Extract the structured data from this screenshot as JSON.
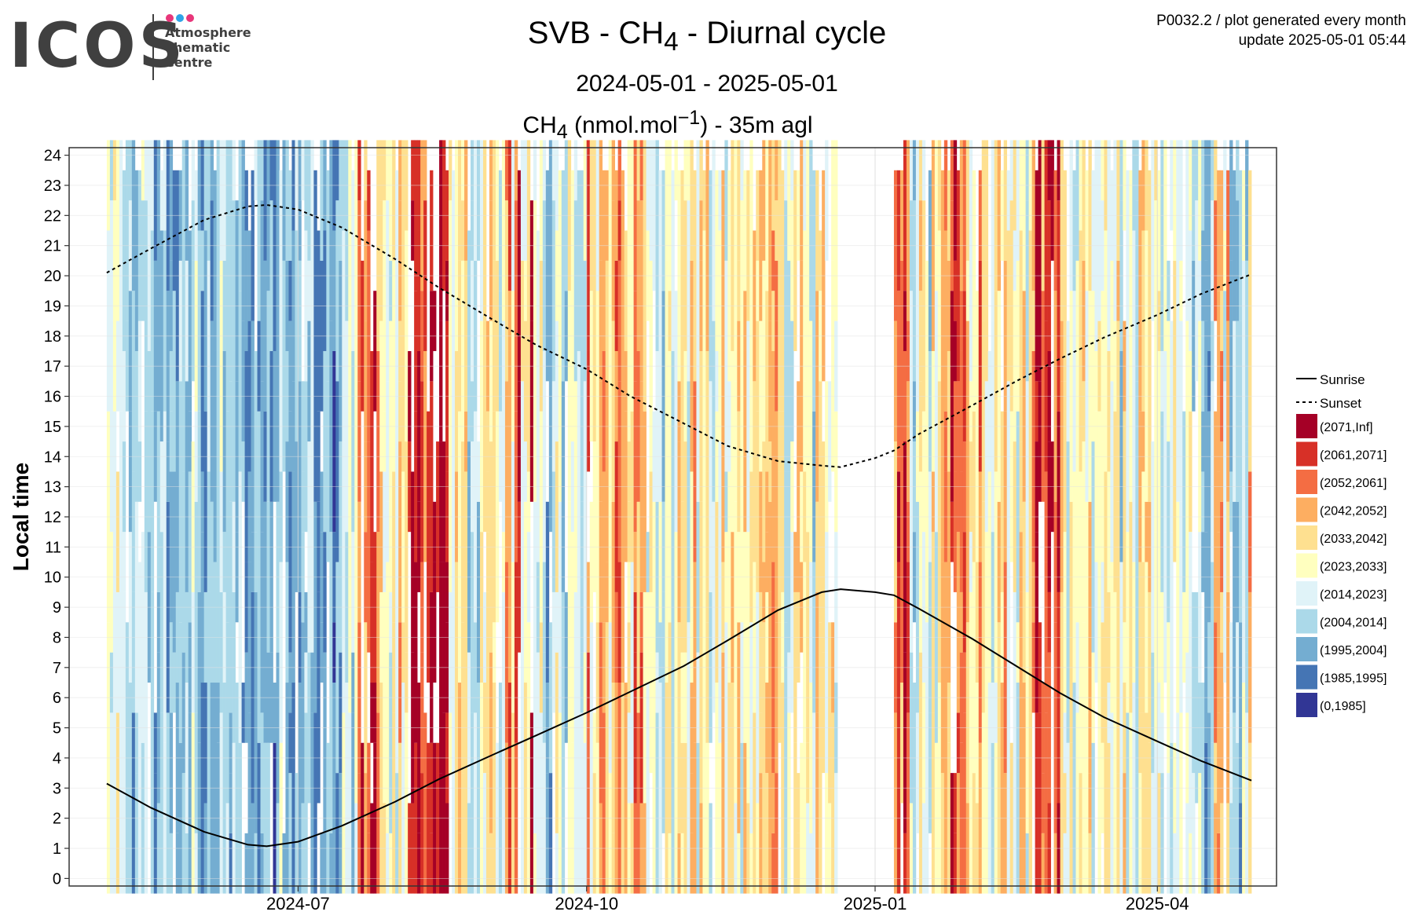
{
  "logo": {
    "word": "ICOS",
    "line1": "Atmosphere",
    "line2": "Thematic",
    "line3": "Centre",
    "dot_colors": [
      "#e8367a",
      "#2fa4e7",
      "#e8367a"
    ]
  },
  "header": {
    "title_prefix": "SVB - CH",
    "title_sub": "4",
    "title_suffix": " - Diurnal cycle",
    "period": "2024-05-01 - 2025-05-01",
    "subtitle_prefix": "CH",
    "subtitle_sub": "4",
    "subtitle_mid": " (nmol.mol",
    "subtitle_sup": "−1",
    "subtitle_suffix": ") - 35m agl",
    "corner_line1": "P0032.2 / plot generated every month",
    "corner_line2": "update  2025-05-01 05:44"
  },
  "chart_data": {
    "type": "heatmap",
    "ylabel": "Local time",
    "xlabel": "",
    "x_range": [
      "2024-05-01",
      "2025-05-01"
    ],
    "ylim": [
      0,
      24
    ],
    "y_ticks": [
      0,
      1,
      2,
      3,
      4,
      5,
      6,
      7,
      8,
      9,
      10,
      11,
      12,
      13,
      14,
      15,
      16,
      17,
      18,
      19,
      20,
      21,
      22,
      23,
      24
    ],
    "x_ticks": [
      {
        "date": "2024-07-01",
        "label": "2024-07"
      },
      {
        "date": "2024-10-01",
        "label": "2024-10"
      },
      {
        "date": "2025-01-01",
        "label": "2025-01"
      },
      {
        "date": "2025-04-01",
        "label": "2025-04"
      }
    ],
    "grid": true,
    "legend_position": "right",
    "lines": [
      {
        "name": "Sunrise",
        "style": "solid",
        "points": [
          [
            "2024-05-01",
            3.15
          ],
          [
            "2024-05-15",
            2.35
          ],
          [
            "2024-06-01",
            1.55
          ],
          [
            "2024-06-15",
            1.12
          ],
          [
            "2024-06-21",
            1.07
          ],
          [
            "2024-07-01",
            1.22
          ],
          [
            "2024-07-15",
            1.75
          ],
          [
            "2024-08-01",
            2.55
          ],
          [
            "2024-08-15",
            3.3
          ],
          [
            "2024-09-01",
            4.1
          ],
          [
            "2024-09-15",
            4.75
          ],
          [
            "2024-10-01",
            5.5
          ],
          [
            "2024-10-15",
            6.2
          ],
          [
            "2024-11-01",
            7.05
          ],
          [
            "2024-11-15",
            7.9
          ],
          [
            "2024-12-01",
            8.9
          ],
          [
            "2024-12-15",
            9.5
          ],
          [
            "2024-12-21",
            9.6
          ],
          [
            "2025-01-01",
            9.5
          ],
          [
            "2025-01-07",
            9.4
          ],
          [
            "2025-01-15",
            8.95
          ],
          [
            "2025-02-01",
            7.95
          ],
          [
            "2025-02-15",
            7.05
          ],
          [
            "2025-03-01",
            6.15
          ],
          [
            "2025-03-15",
            5.35
          ],
          [
            "2025-04-01",
            4.55
          ],
          [
            "2025-04-15",
            3.9
          ],
          [
            "2025-05-01",
            3.25
          ]
        ]
      },
      {
        "name": "Sunset",
        "style": "dashed",
        "points": [
          [
            "2024-05-01",
            20.1
          ],
          [
            "2024-05-15",
            20.9
          ],
          [
            "2024-06-01",
            21.85
          ],
          [
            "2024-06-15",
            22.3
          ],
          [
            "2024-06-21",
            22.35
          ],
          [
            "2024-07-01",
            22.2
          ],
          [
            "2024-07-15",
            21.6
          ],
          [
            "2024-08-01",
            20.55
          ],
          [
            "2024-08-15",
            19.6
          ],
          [
            "2024-09-01",
            18.55
          ],
          [
            "2024-09-15",
            17.7
          ],
          [
            "2024-10-01",
            16.9
          ],
          [
            "2024-10-15",
            16.0
          ],
          [
            "2024-11-01",
            15.1
          ],
          [
            "2024-11-15",
            14.35
          ],
          [
            "2024-12-01",
            13.85
          ],
          [
            "2024-12-15",
            13.7
          ],
          [
            "2024-12-21",
            13.65
          ],
          [
            "2025-01-01",
            13.95
          ],
          [
            "2025-01-07",
            14.2
          ],
          [
            "2025-01-15",
            14.75
          ],
          [
            "2025-02-01",
            15.7
          ],
          [
            "2025-02-15",
            16.5
          ],
          [
            "2025-03-01",
            17.25
          ],
          [
            "2025-03-15",
            17.95
          ],
          [
            "2025-04-01",
            18.7
          ],
          [
            "2025-04-15",
            19.4
          ],
          [
            "2025-05-01",
            20.05
          ]
        ]
      }
    ],
    "legend_lines": [
      "Sunrise",
      "Sunset"
    ],
    "bins": [
      {
        "label": "(2071,Inf]",
        "color": "#a50026"
      },
      {
        "label": "(2061,2071]",
        "color": "#d73027"
      },
      {
        "label": "(2052,2061]",
        "color": "#f46d43"
      },
      {
        "label": "(2042,2052]",
        "color": "#fdae61"
      },
      {
        "label": "(2033,2042]",
        "color": "#fee090"
      },
      {
        "label": "(2023,2033]",
        "color": "#ffffbf"
      },
      {
        "label": "(2014,2023]",
        "color": "#e0f3f8"
      },
      {
        "label": "(2004,2014]",
        "color": "#abd9e9"
      },
      {
        "label": "(1995,2004]",
        "color": "#74add1"
      },
      {
        "label": "(1985,1995]",
        "color": "#4575b4"
      },
      {
        "label": "(0,1985]",
        "color": "#313695"
      }
    ],
    "segments": [
      {
        "start": "2024-05-01",
        "end": "2024-05-06",
        "levels": [
          6,
          5,
          6
        ]
      },
      {
        "start": "2024-05-06",
        "end": "2024-05-16",
        "levels": [
          7,
          6,
          7,
          8
        ]
      },
      {
        "start": "2024-05-16",
        "end": "2024-06-01",
        "levels": [
          8,
          7,
          8,
          6
        ]
      },
      {
        "start": "2024-06-01",
        "end": "2024-06-10",
        "levels": [
          8,
          7,
          6
        ]
      },
      {
        "start": "2024-06-10",
        "end": "2024-06-24",
        "levels": [
          8,
          8,
          7,
          9
        ]
      },
      {
        "start": "2024-06-24",
        "end": "2024-07-01",
        "levels": [
          7,
          8,
          6
        ]
      },
      {
        "start": "2024-07-01",
        "end": "2024-07-15",
        "levels": [
          8,
          9,
          8,
          7
        ]
      },
      {
        "start": "2024-07-15",
        "end": "2024-07-20",
        "levels": [
          6,
          7,
          5
        ]
      },
      {
        "start": "2024-07-20",
        "end": "2024-07-27",
        "levels": [
          1,
          0,
          2,
          3
        ]
      },
      {
        "start": "2024-07-27",
        "end": "2024-08-05",
        "levels": [
          5,
          6,
          4,
          3
        ]
      },
      {
        "start": "2024-08-05",
        "end": "2024-08-18",
        "levels": [
          0,
          1,
          0,
          2
        ]
      },
      {
        "start": "2024-08-18",
        "end": "2024-09-05",
        "levels": [
          7,
          6,
          4,
          5
        ]
      },
      {
        "start": "2024-09-05",
        "end": "2024-09-15",
        "levels": [
          0,
          2,
          5,
          3
        ]
      },
      {
        "start": "2024-09-15",
        "end": "2024-10-01",
        "levels": [
          7,
          6,
          8,
          5
        ]
      },
      {
        "start": "2024-10-01",
        "end": "2024-10-20",
        "levels": [
          4,
          5,
          3,
          2
        ]
      },
      {
        "start": "2024-10-20",
        "end": "2024-11-01",
        "levels": [
          6,
          5,
          7,
          4
        ]
      },
      {
        "start": "2024-11-01",
        "end": "2024-11-15",
        "levels": [
          5,
          4,
          6,
          3
        ]
      },
      {
        "start": "2024-11-15",
        "end": "2024-12-01",
        "levels": [
          4,
          5,
          6,
          3
        ]
      },
      {
        "start": "2024-12-01",
        "end": "2024-12-15",
        "levels": [
          6,
          7,
          5,
          4
        ]
      },
      {
        "start": "2024-12-15",
        "end": "2024-12-20",
        "levels": [
          5,
          6,
          4
        ]
      },
      {
        "start": "2025-01-07",
        "end": "2025-01-12",
        "levels": [
          2,
          1,
          3
        ]
      },
      {
        "start": "2025-01-12",
        "end": "2025-01-22",
        "levels": [
          7,
          6,
          5,
          4
        ]
      },
      {
        "start": "2025-01-22",
        "end": "2025-02-05",
        "levels": [
          4,
          5,
          2,
          1
        ]
      },
      {
        "start": "2025-02-05",
        "end": "2025-02-20",
        "levels": [
          3,
          4,
          5,
          6
        ]
      },
      {
        "start": "2025-02-20",
        "end": "2025-03-01",
        "levels": [
          0,
          2,
          1,
          3
        ]
      },
      {
        "start": "2025-03-01",
        "end": "2025-03-20",
        "levels": [
          5,
          6,
          4,
          5
        ]
      },
      {
        "start": "2025-03-20",
        "end": "2025-04-01",
        "levels": [
          6,
          5,
          7,
          4
        ]
      },
      {
        "start": "2025-04-01",
        "end": "2025-04-15",
        "levels": [
          6,
          7,
          6,
          5
        ]
      },
      {
        "start": "2025-04-15",
        "end": "2025-05-01",
        "levels": [
          6,
          7,
          3,
          8
        ]
      }
    ]
  }
}
